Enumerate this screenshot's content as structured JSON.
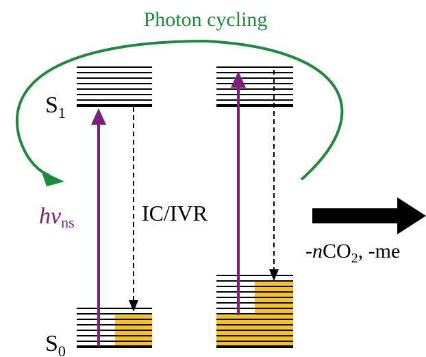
{
  "title": "Photon cycling",
  "labels": {
    "s1": "S",
    "s1_sub": "1",
    "s0": "S",
    "s0_sub": "0",
    "excitation_main": "hν",
    "excitation_sub": "ns",
    "relaxation": "IC/IVR",
    "loss_part1": "-n",
    "loss_part2": "CO",
    "loss_sub": "2",
    "loss_part3": ", -m",
    "loss_part4": "e"
  },
  "colors": {
    "cycling_arrow": "#1e8a3c",
    "excitation_arrow": "#7a1f7a",
    "population_fill": "#f5c518",
    "levels": "#000000",
    "dissociation_arrow": "#000000"
  },
  "icons": {
    "cycling": "curved-arrow-icon",
    "excitation": "up-arrow-icon",
    "relaxation": "dashed-down-arrow-icon",
    "dissociation": "thick-right-arrow-icon"
  }
}
